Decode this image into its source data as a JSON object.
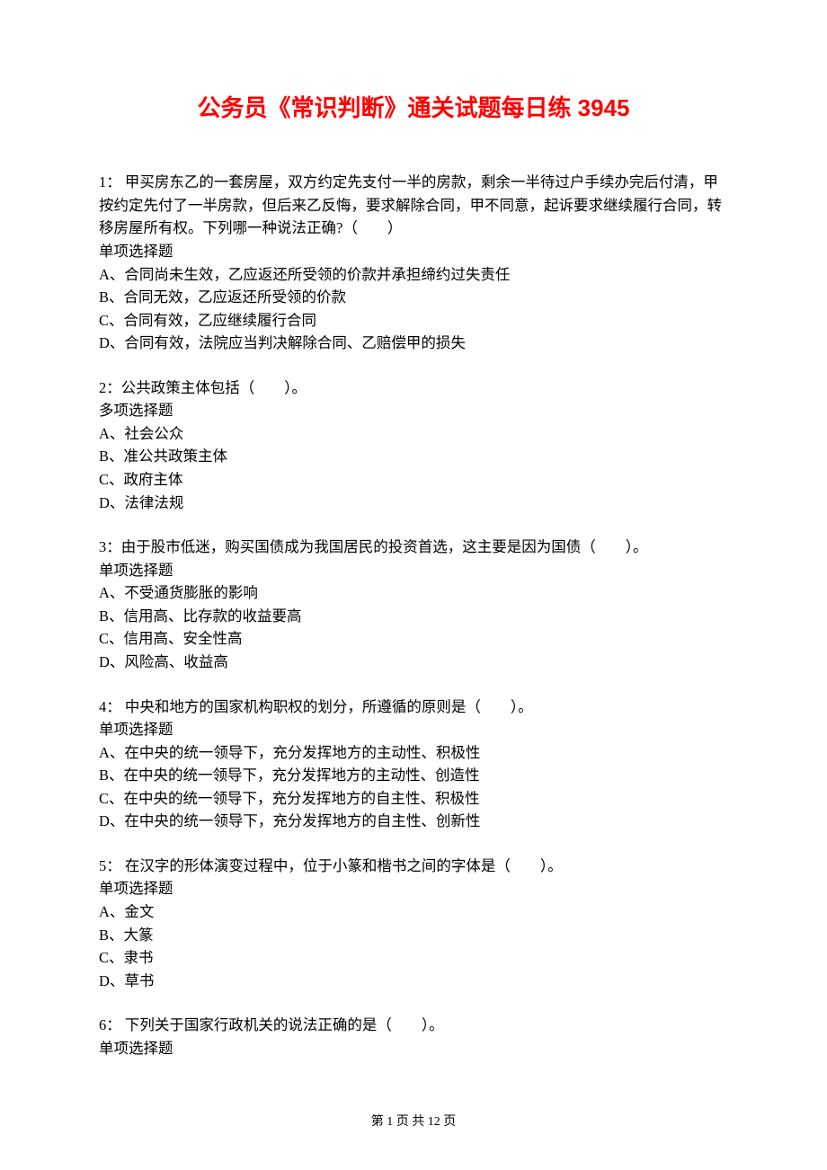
{
  "title": "公务员《常识判断》通关试题每日练 3945",
  "questions": [
    {
      "num": "1：",
      "stem": " 甲买房东乙的一套房屋，双方约定先支付一半的房款，剩余一半待过户手续办完后付清，甲按约定先付了一半房款，但后来乙反悔，要求解除合同，甲不同意，起诉要求继续履行合同，转移房屋所有权。下列哪一种说法正确?（　　）",
      "type": "单项选择题",
      "options": [
        "A、合同尚未生效，乙应返还所受领的价款并承担缔约过失责任",
        "B、合同无效，乙应返还所受领的价款",
        "C、合同有效，乙应继续履行合同",
        "D、合同有效，法院应当判决解除合同、乙赔偿甲的损失"
      ]
    },
    {
      "num": "2：",
      "stem": "公共政策主体包括（　　）。",
      "type": "多项选择题",
      "options": [
        "A、社会公众",
        "B、准公共政策主体",
        "C、政府主体",
        "D、法律法规"
      ]
    },
    {
      "num": "3：",
      "stem": "由于股市低迷，购买国债成为我国居民的投资首选，这主要是因为国债（　　）。",
      "type": "单项选择题",
      "options": [
        "A、不受通货膨胀的影响",
        "B、信用高、比存款的收益要高",
        "C、信用高、安全性高",
        "D、风险高、收益高"
      ]
    },
    {
      "num": "4：",
      "stem": " 中央和地方的国家机构职权的划分，所遵循的原则是（　　）。",
      "type": "单项选择题",
      "options": [
        "A、在中央的统一领导下，充分发挥地方的主动性、积极性",
        "B、在中央的统一领导下，充分发挥地方的主动性、创造性",
        "C、在中央的统一领导下，充分发挥地方的自主性、积极性",
        "D、在中央的统一领导下，充分发挥地方的自主性、创新性"
      ]
    },
    {
      "num": "5：",
      "stem": " 在汉字的形体演变过程中，位于小篆和楷书之间的字体是（　　）。",
      "type": "单项选择题",
      "options": [
        "A、金文",
        "B、大篆",
        "C、隶书",
        "D、草书"
      ]
    },
    {
      "num": "6：",
      "stem": " 下列关于国家行政机关的说法正确的是（　　）。",
      "type": "单项选择题",
      "options": []
    }
  ],
  "footer": {
    "prefix": "第 ",
    "cur": "1",
    "mid": " 页 共 ",
    "total": "12",
    "suffix": " 页"
  }
}
